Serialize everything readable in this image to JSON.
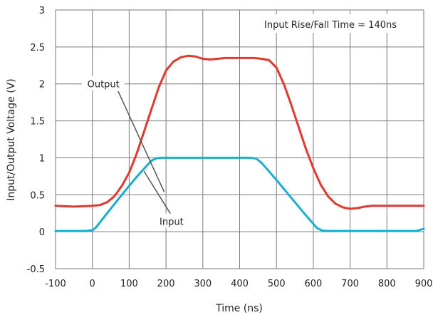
{
  "chart_data": {
    "type": "line",
    "xlabel": "Time (ns)",
    "ylabel": "Input/Output Voltage (V)",
    "xlim": [
      -100,
      900
    ],
    "ylim": [
      -0.5,
      3
    ],
    "xticks": [
      -100,
      0,
      100,
      200,
      300,
      400,
      500,
      600,
      700,
      800,
      900
    ],
    "yticks": [
      -0.5,
      0,
      0.5,
      1,
      1.5,
      2,
      2.5,
      3
    ],
    "xtick_labels": [
      "-100",
      "0",
      "100",
      "200",
      "300",
      "400",
      "500",
      "600",
      "700",
      "800",
      "900"
    ],
    "ytick_labels": [
      "-0.5",
      "0",
      "0.5",
      "1",
      "1.5",
      "2",
      "2.5",
      "3"
    ],
    "grid": true,
    "annotations": [
      {
        "text": "Input Rise/Fall Time = 140ns",
        "position": "top-right"
      },
      {
        "text": "Output",
        "target_series": "Output",
        "x": 30,
        "y": 2.0
      },
      {
        "text": "Input",
        "target_series": "Input",
        "x": 215,
        "y": 0.14
      }
    ],
    "series": [
      {
        "name": "Output",
        "color": "#e03a30",
        "x": [
          -100,
          -50,
          0,
          20,
          40,
          60,
          80,
          100,
          120,
          140,
          160,
          180,
          200,
          220,
          240,
          260,
          280,
          300,
          320,
          340,
          360,
          380,
          400,
          420,
          440,
          460,
          480,
          500,
          520,
          540,
          560,
          580,
          600,
          620,
          640,
          660,
          680,
          700,
          720,
          740,
          760,
          780,
          800,
          850,
          900
        ],
        "y": [
          0.35,
          0.34,
          0.35,
          0.36,
          0.4,
          0.48,
          0.62,
          0.8,
          1.05,
          1.35,
          1.65,
          1.95,
          2.18,
          2.3,
          2.36,
          2.38,
          2.37,
          2.34,
          2.33,
          2.34,
          2.35,
          2.35,
          2.35,
          2.35,
          2.35,
          2.34,
          2.32,
          2.22,
          2.0,
          1.72,
          1.42,
          1.12,
          0.86,
          0.64,
          0.48,
          0.38,
          0.33,
          0.31,
          0.32,
          0.34,
          0.35,
          0.35,
          0.35,
          0.35,
          0.35
        ]
      },
      {
        "name": "Input",
        "color": "#1aaed0",
        "x": [
          -100,
          -20,
          0,
          10,
          40,
          80,
          120,
          160,
          175,
          190,
          250,
          350,
          430,
          445,
          460,
          500,
          540,
          580,
          610,
          625,
          640,
          700,
          800,
          880,
          900
        ],
        "y": [
          0.01,
          0.01,
          0.02,
          0.06,
          0.25,
          0.5,
          0.74,
          0.96,
          0.995,
          1.0,
          1.0,
          1.0,
          1.0,
          0.99,
          0.93,
          0.7,
          0.46,
          0.22,
          0.05,
          0.015,
          0.01,
          0.01,
          0.01,
          0.01,
          0.04
        ]
      }
    ]
  }
}
